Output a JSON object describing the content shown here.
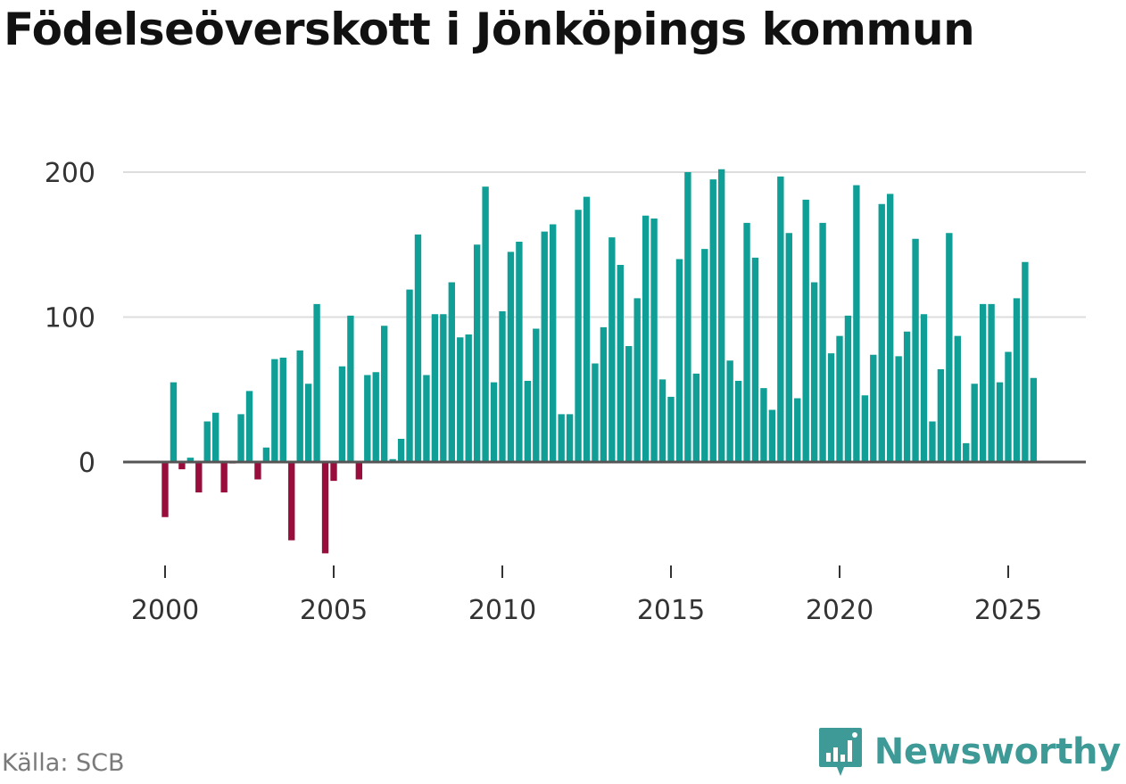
{
  "title": "Födelseöverskott i Jönköpings kommun",
  "source": "Källa: SCB",
  "brand": {
    "name": "Newsworthy",
    "icon": "newsworthy-logo-icon"
  },
  "colors": {
    "positive": "#0f9f97",
    "negative": "#990d3d",
    "grid": "#dddddd",
    "baseline": "#555555",
    "brand": "#3e9a96"
  },
  "chart_data": {
    "type": "bar",
    "title": "Födelseöverskott i Jönköpings kommun",
    "xlabel": "",
    "ylabel": "",
    "frequency": "quarterly",
    "x_start": 2000.0,
    "x_step": 0.25,
    "xlim": [
      1999.5,
      2027.25
    ],
    "ylim": [
      -70,
      210
    ],
    "y_ticks": [
      0,
      100,
      200
    ],
    "x_ticks": [
      2000,
      2005,
      2010,
      2015,
      2020,
      2025
    ],
    "grid": true,
    "values": [
      -38,
      55,
      -5,
      3,
      -21,
      28,
      34,
      -21,
      -1,
      33,
      49,
      -12,
      10,
      71,
      72,
      -54,
      77,
      54,
      109,
      -63,
      -13,
      66,
      101,
      -12,
      60,
      62,
      94,
      2,
      16,
      119,
      157,
      60,
      102,
      102,
      124,
      86,
      88,
      150,
      190,
      55,
      104,
      145,
      152,
      56,
      92,
      159,
      164,
      33,
      33,
      174,
      183,
      68,
      93,
      155,
      136,
      80,
      113,
      170,
      168,
      57,
      45,
      140,
      200,
      61,
      147,
      195,
      202,
      70,
      56,
      165,
      141,
      51,
      36,
      197,
      158,
      44,
      181,
      124,
      165,
      75,
      87,
      101,
      191,
      46,
      74,
      178,
      185,
      73,
      90,
      154,
      102,
      28,
      64,
      158,
      87,
      13,
      54,
      109,
      109,
      55,
      76,
      113,
      138,
      58
    ]
  }
}
